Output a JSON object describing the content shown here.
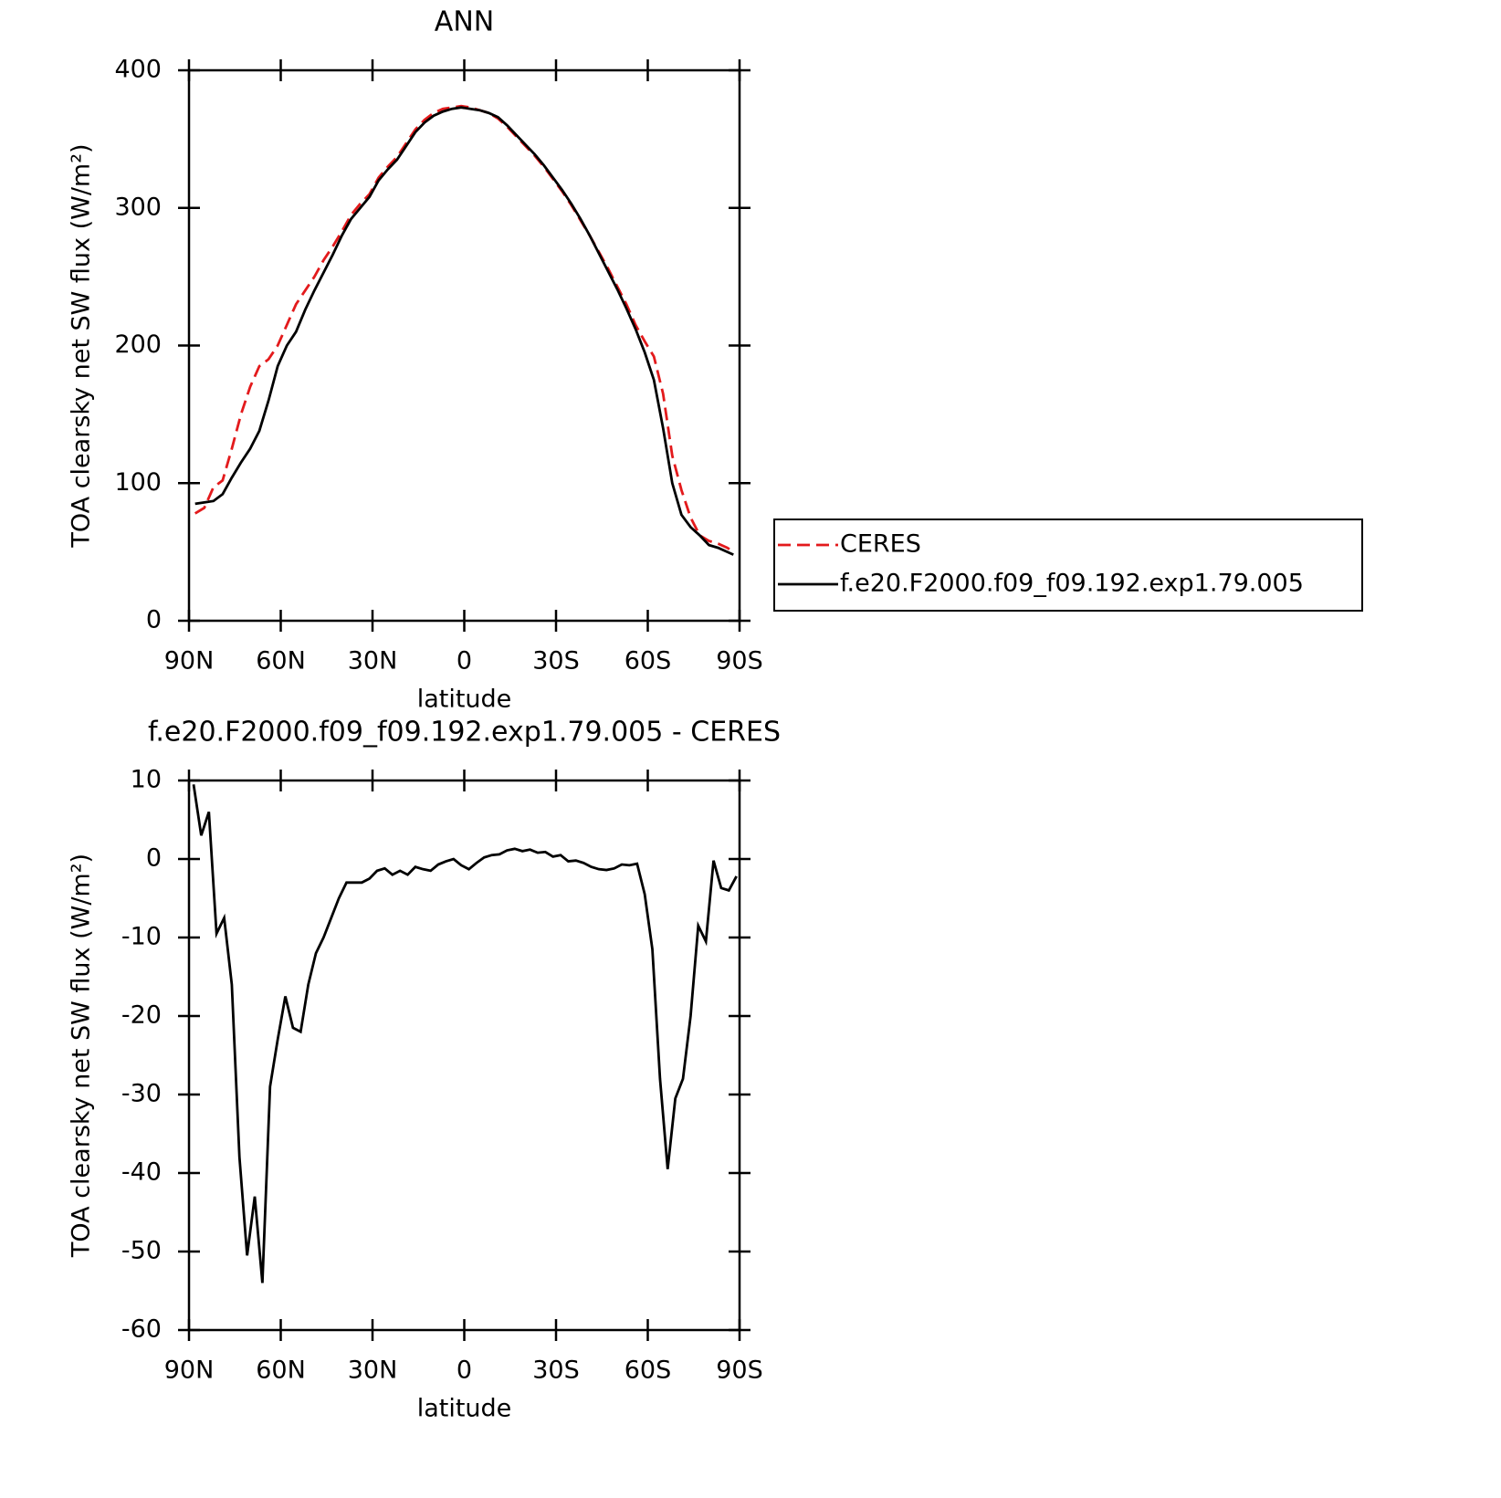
{
  "chart_data": [
    {
      "type": "line",
      "title": "ANN",
      "xlabel": "latitude",
      "ylabel": "TOA clearsky net SW flux (W/m²)",
      "x": [
        88,
        85,
        82,
        79,
        76,
        73,
        70,
        67,
        64,
        61,
        58,
        55,
        52,
        49,
        46,
        43,
        40,
        37,
        34,
        31,
        28,
        25,
        22,
        19,
        16,
        13,
        10,
        7,
        4,
        1,
        -2,
        -5,
        -8,
        -11,
        -14,
        -17,
        -20,
        -23,
        -26,
        -29,
        -32,
        -35,
        -38,
        -41,
        -44,
        -47,
        -50,
        -53,
        -56,
        -59,
        -62,
        -65,
        -68,
        -71,
        -74,
        -77,
        -80,
        -83,
        -86,
        -88
      ],
      "series": [
        {
          "name": "CERES",
          "color": "#e31a1c",
          "style": "dashed",
          "values": [
            78,
            82,
            97,
            102,
            125,
            150,
            170,
            185,
            190,
            200,
            215,
            230,
            240,
            250,
            262,
            272,
            283,
            295,
            303,
            310,
            322,
            330,
            337,
            347,
            357,
            364,
            369,
            372,
            373,
            374,
            373,
            371,
            369,
            365,
            359,
            352,
            345,
            338,
            330,
            321,
            312,
            302,
            291,
            280,
            268,
            256,
            243,
            230,
            215,
            203,
            192,
            165,
            120,
            95,
            75,
            62,
            58,
            56,
            53,
            50
          ]
        },
        {
          "name": "f.e20.F2000.f09_f09.192.exp1.79.005",
          "color": "#000000",
          "style": "solid",
          "values": [
            85,
            86,
            87,
            92,
            104,
            115,
            125,
            138,
            160,
            185,
            200,
            210,
            226,
            240,
            253,
            266,
            280,
            292,
            300,
            308,
            320,
            328,
            335,
            345,
            355,
            362,
            367,
            370,
            372,
            373,
            372,
            371,
            369,
            366,
            360,
            353,
            346,
            339,
            331,
            322,
            313,
            303,
            292,
            280,
            267,
            254,
            241,
            227,
            212,
            195,
            175,
            140,
            100,
            77,
            68,
            62,
            55,
            53,
            50,
            48
          ]
        }
      ],
      "xlim": [
        90,
        -90
      ],
      "xticks": [
        {
          "value": 90,
          "label": "90N"
        },
        {
          "value": 60,
          "label": "60N"
        },
        {
          "value": 30,
          "label": "30N"
        },
        0,
        {
          "value": -30,
          "label": "30S"
        },
        {
          "value": -60,
          "label": "60S"
        },
        {
          "value": -90,
          "label": "90S"
        }
      ],
      "ylim": [
        0,
        400
      ],
      "yticks": [
        0,
        100,
        200,
        300,
        400
      ],
      "legend": "right"
    },
    {
      "type": "line",
      "title": "f.e20.F2000.f09_f09.192.exp1.79.005 - CERES",
      "xlabel": "latitude",
      "ylabel": "TOA clearsky net SW flux (W/m²)",
      "x": [
        88.5,
        86,
        83.5,
        81,
        78.5,
        76,
        73.5,
        71,
        68.5,
        66,
        63.5,
        61,
        58.5,
        56,
        53.5,
        51,
        48.5,
        46,
        43.5,
        41,
        38.5,
        36,
        33.5,
        31,
        28.5,
        26,
        23.5,
        21,
        18.5,
        16,
        13.5,
        11,
        8.5,
        6,
        3.5,
        1,
        -1.5,
        -4,
        -6.5,
        -9,
        -11.5,
        -14,
        -16.5,
        -19,
        -21.5,
        -24,
        -26.5,
        -29,
        -31.5,
        -34,
        -36.5,
        -39,
        -41.5,
        -44,
        -46.5,
        -49,
        -51.5,
        -54,
        -56.5,
        -59,
        -61.5,
        -64,
        -66.5,
        -69,
        -71.5,
        -74,
        -76.5,
        -79,
        -81.5,
        -84,
        -86.5,
        -89
      ],
      "series": [
        {
          "color": "#000000",
          "style": "solid",
          "values": [
            9.5,
            3,
            6,
            -9.5,
            -7.5,
            -16,
            -38,
            -50.5,
            -43,
            -54,
            -29,
            -23,
            -17.5,
            -21.5,
            -22,
            -16,
            -12,
            -10,
            -7.5,
            -5,
            -3,
            -3,
            -3,
            -2.5,
            -1.5,
            -1.2,
            -2,
            -1.5,
            -2,
            -1,
            -1.3,
            -1.5,
            -0.7,
            -0.3,
            0,
            -0.8,
            -1.3,
            -0.5,
            0.2,
            0.5,
            0.6,
            1.1,
            1.3,
            1,
            1.2,
            0.8,
            0.9,
            0.3,
            0.5,
            -0.3,
            -0.2,
            -0.5,
            -1,
            -1.3,
            -1.4,
            -1.2,
            -0.7,
            -0.8,
            -0.6,
            -4.5,
            -11.5,
            -28,
            -39.5,
            -30.5,
            -28,
            -20,
            -8.5,
            -10.5,
            -0.2,
            -3.7,
            -4,
            -2.2
          ]
        }
      ],
      "xlim": [
        90,
        -90
      ],
      "xticks": [
        {
          "value": 90,
          "label": "90N"
        },
        {
          "value": 60,
          "label": "60N"
        },
        {
          "value": 30,
          "label": "30N"
        },
        0,
        {
          "value": -30,
          "label": "30S"
        },
        {
          "value": -60,
          "label": "60S"
        },
        {
          "value": -90,
          "label": "90S"
        }
      ],
      "ylim": [
        -60,
        10
      ],
      "yticks": [
        -60,
        -50,
        -40,
        -30,
        -20,
        -10,
        0,
        10
      ]
    }
  ]
}
